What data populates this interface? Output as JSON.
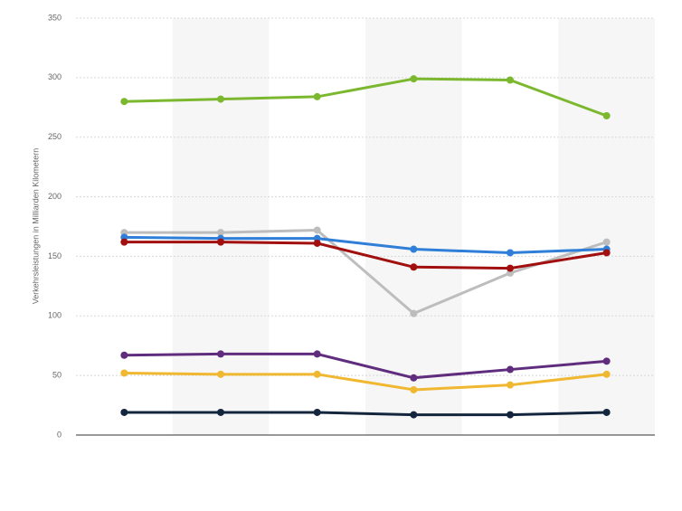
{
  "chart_data": {
    "type": "line",
    "y_label": "Verkehrsleistungen in Milliarden Kilometern",
    "categories": [
      null,
      null,
      null,
      null,
      null,
      null
    ],
    "series": [
      {
        "color": "#7cb82f",
        "values": [
          280,
          282,
          284,
          299,
          298,
          268
        ]
      },
      {
        "color": "#bdbdbd",
        "values": [
          170,
          170,
          172,
          102,
          136,
          162
        ]
      },
      {
        "color": "#2f7ed8",
        "values": [
          166,
          165,
          165,
          156,
          153,
          156
        ]
      },
      {
        "color": "#a10f0f",
        "values": [
          162,
          162,
          161,
          141,
          140,
          153
        ]
      },
      {
        "color": "#5f2c7e",
        "values": [
          67,
          68,
          68,
          48,
          55,
          62
        ]
      },
      {
        "color": "#f0b730",
        "values": [
          52,
          51,
          51,
          38,
          42,
          51
        ]
      },
      {
        "color": "#14263e",
        "values": [
          19,
          19,
          19,
          17,
          17,
          19
        ]
      }
    ],
    "ylim": [
      0,
      350
    ],
    "yticks": [
      0,
      50,
      100,
      150,
      200,
      250,
      300,
      350
    ],
    "grid": true
  }
}
